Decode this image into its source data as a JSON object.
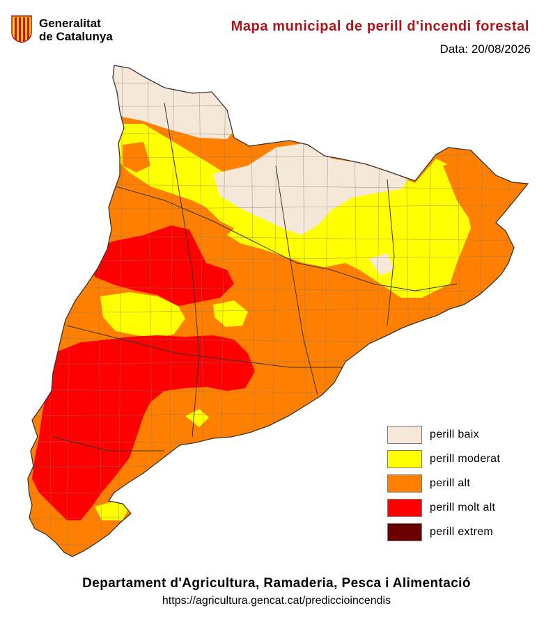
{
  "header": {
    "logo_line1": "Generalitat",
    "logo_line2": "de Catalunya",
    "title": "Mapa municipal de perill d'incendi forestal",
    "date": "Data: 20/08/2026"
  },
  "legend": {
    "items": [
      {
        "label": "perill baix",
        "color": "#f6e8d8"
      },
      {
        "label": "perill moderat",
        "color": "#ffff00"
      },
      {
        "label": "perill alt",
        "color": "#ff8000"
      },
      {
        "label": "perill molt alt",
        "color": "#ff0000"
      },
      {
        "label": "perill extrem",
        "color": "#6b0000"
      }
    ]
  },
  "footer": {
    "department": "Departament d'Agricultura, Ramaderia, Pesca i Alimentació",
    "url": "https://agricultura.gencat.cat/prediccioincendis"
  }
}
